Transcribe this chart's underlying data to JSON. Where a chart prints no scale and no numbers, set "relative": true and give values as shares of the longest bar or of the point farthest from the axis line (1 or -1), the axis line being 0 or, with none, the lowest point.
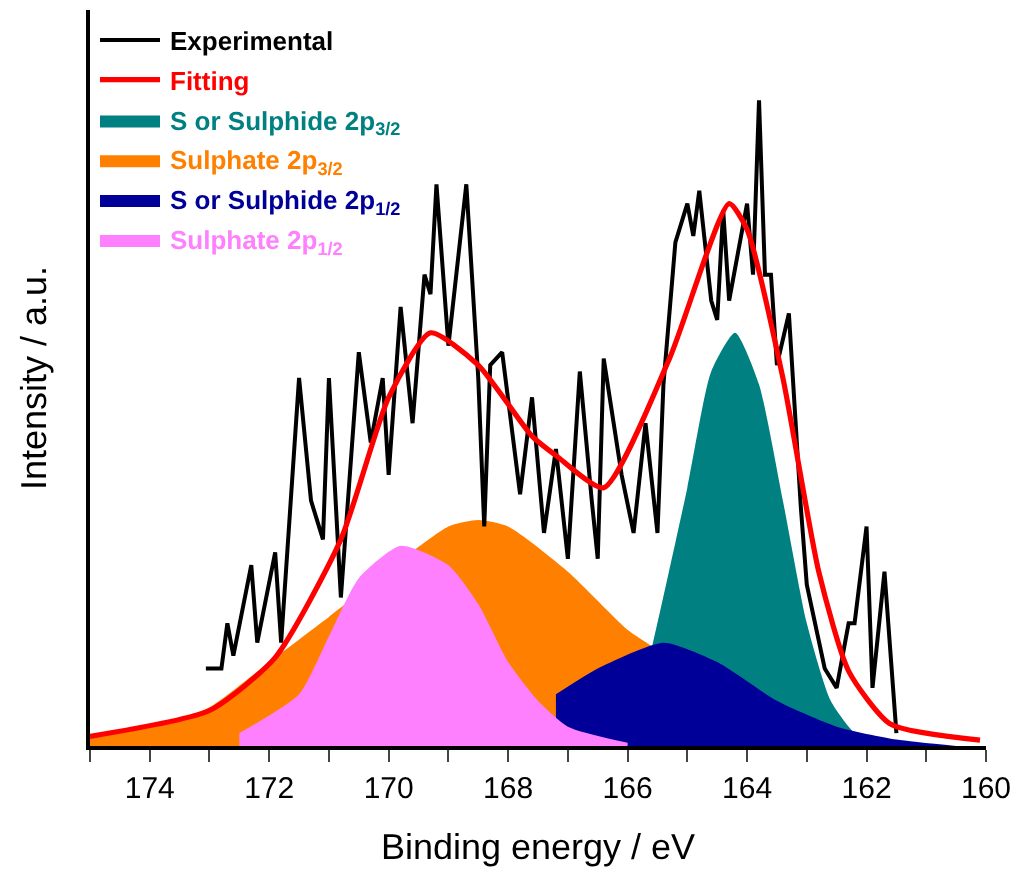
{
  "chart_data": {
    "type": "line",
    "xlabel": "Binding energy / eV",
    "ylabel": "Intensity / a.u.",
    "relative": true,
    "xlim": [
      175,
      160
    ],
    "xticks": [
      {
        "value": 175,
        "label": null
      },
      174,
      {
        "value": 173,
        "label": null
      },
      172,
      {
        "value": 171,
        "label": null
      },
      170,
      {
        "value": 169,
        "label": null
      },
      168,
      {
        "value": 167,
        "label": null
      },
      166,
      {
        "value": 165,
        "label": null
      },
      164,
      {
        "value": 163,
        "label": null
      },
      162,
      {
        "value": 161,
        "label": null
      },
      160
    ],
    "legend": "top left",
    "series": [
      {
        "name": "Experimental",
        "color": "#000000",
        "x": [
          173.06,
          172.8,
          172.7,
          172.6,
          172.3,
          172.2,
          171.9,
          171.8,
          171.5,
          171.3,
          171.1,
          171.0,
          170.8,
          170.5,
          170.3,
          170.1,
          170.0,
          169.8,
          169.6,
          169.4,
          169.3,
          169.2,
          169.0,
          168.7,
          168.5,
          168.4,
          168.3,
          168.1,
          167.8,
          167.6,
          167.4,
          167.2,
          167.0,
          166.8,
          166.6,
          166.5,
          166.4,
          166.1,
          165.9,
          165.7,
          165.5,
          165.4,
          165.2,
          165.0,
          164.9,
          164.8,
          164.6,
          164.5,
          164.4,
          164.3,
          164.0,
          163.9,
          163.8,
          163.7,
          163.6,
          163.5,
          163.3,
          163.1,
          163.0,
          162.7,
          162.5,
          162.3,
          162.2,
          162.0,
          161.9,
          161.7,
          161.5
        ],
        "values": [
          0.12,
          0.12,
          0.19,
          0.14,
          0.28,
          0.16,
          0.3,
          0.16,
          0.57,
          0.38,
          0.32,
          0.57,
          0.23,
          0.61,
          0.47,
          0.57,
          0.42,
          0.68,
          0.5,
          0.73,
          0.7,
          0.87,
          0.62,
          0.87,
          0.57,
          0.34,
          0.59,
          0.61,
          0.39,
          0.54,
          0.33,
          0.46,
          0.29,
          0.58,
          0.38,
          0.29,
          0.6,
          0.42,
          0.33,
          0.5,
          0.33,
          0.56,
          0.78,
          0.84,
          0.79,
          0.86,
          0.69,
          0.66,
          0.83,
          0.69,
          0.84,
          0.73,
          1.0,
          0.73,
          0.73,
          0.59,
          0.67,
          0.37,
          0.25,
          0.12,
          0.09,
          0.19,
          0.19,
          0.34,
          0.09,
          0.27,
          0.02
        ]
      },
      {
        "name": "Fitting",
        "color": "#ff0000",
        "x": [
          175.0,
          173.0,
          171.9,
          170.8,
          170.0,
          169.3,
          168.5,
          167.6,
          167.2,
          166.4,
          165.3,
          164.3,
          164.0,
          163.4,
          162.8,
          162.3,
          161.6,
          160.1
        ],
        "values": [
          0.015,
          0.055,
          0.137,
          0.32,
          0.54,
          0.64,
          0.59,
          0.48,
          0.45,
          0.4,
          0.6,
          0.84,
          0.8,
          0.57,
          0.27,
          0.116,
          0.034,
          0.009
        ]
      },
      {
        "name": "S or Sulphide 2p$_{3/2}$",
        "type": "area",
        "color": "#008080",
        "x": [
          166.0,
          165.6,
          165.0,
          164.6,
          164.2,
          163.8,
          163.4,
          163.0,
          162.6,
          162.2,
          161.8
        ],
        "values": [
          0.0,
          0.15,
          0.4,
          0.58,
          0.64,
          0.56,
          0.38,
          0.19,
          0.07,
          0.02,
          0.0
        ]
      },
      {
        "name": "Sulphate 2p$_{3/2}$",
        "type": "area",
        "color": "#ff8000",
        "x": [
          175,
          174,
          173,
          172,
          171,
          170,
          169,
          168.5,
          168,
          167,
          166,
          165.6
        ],
        "values": [
          0.015,
          0.03,
          0.06,
          0.13,
          0.2,
          null,
          0.34,
          0.35,
          0.34,
          0.27,
          0.18,
          0.155
        ]
      },
      {
        "name": "S or Sulphide 2p$_{1/2}$",
        "type": "area",
        "color": "#000099",
        "x": [
          167.2,
          166.5,
          165.4,
          164.5,
          163.5,
          162.5,
          161.5,
          160.5
        ],
        "values": [
          0.08,
          0.12,
          0.16,
          0.13,
          0.07,
          0.03,
          0.01,
          0.0
        ]
      },
      {
        "name": "Sulphate 2p$_{1/2}$",
        "type": "area",
        "color": "#ff80ff",
        "x": [
          172.5,
          171.5,
          171.0,
          170.5,
          169.8,
          169.0,
          168.5,
          168.0,
          167.5,
          167.0,
          166.0
        ],
        "values": [
          0.02,
          0.08,
          0.17,
          0.26,
          0.31,
          0.28,
          0.22,
          0.13,
          0.07,
          0.03,
          0.005
        ]
      }
    ]
  }
}
